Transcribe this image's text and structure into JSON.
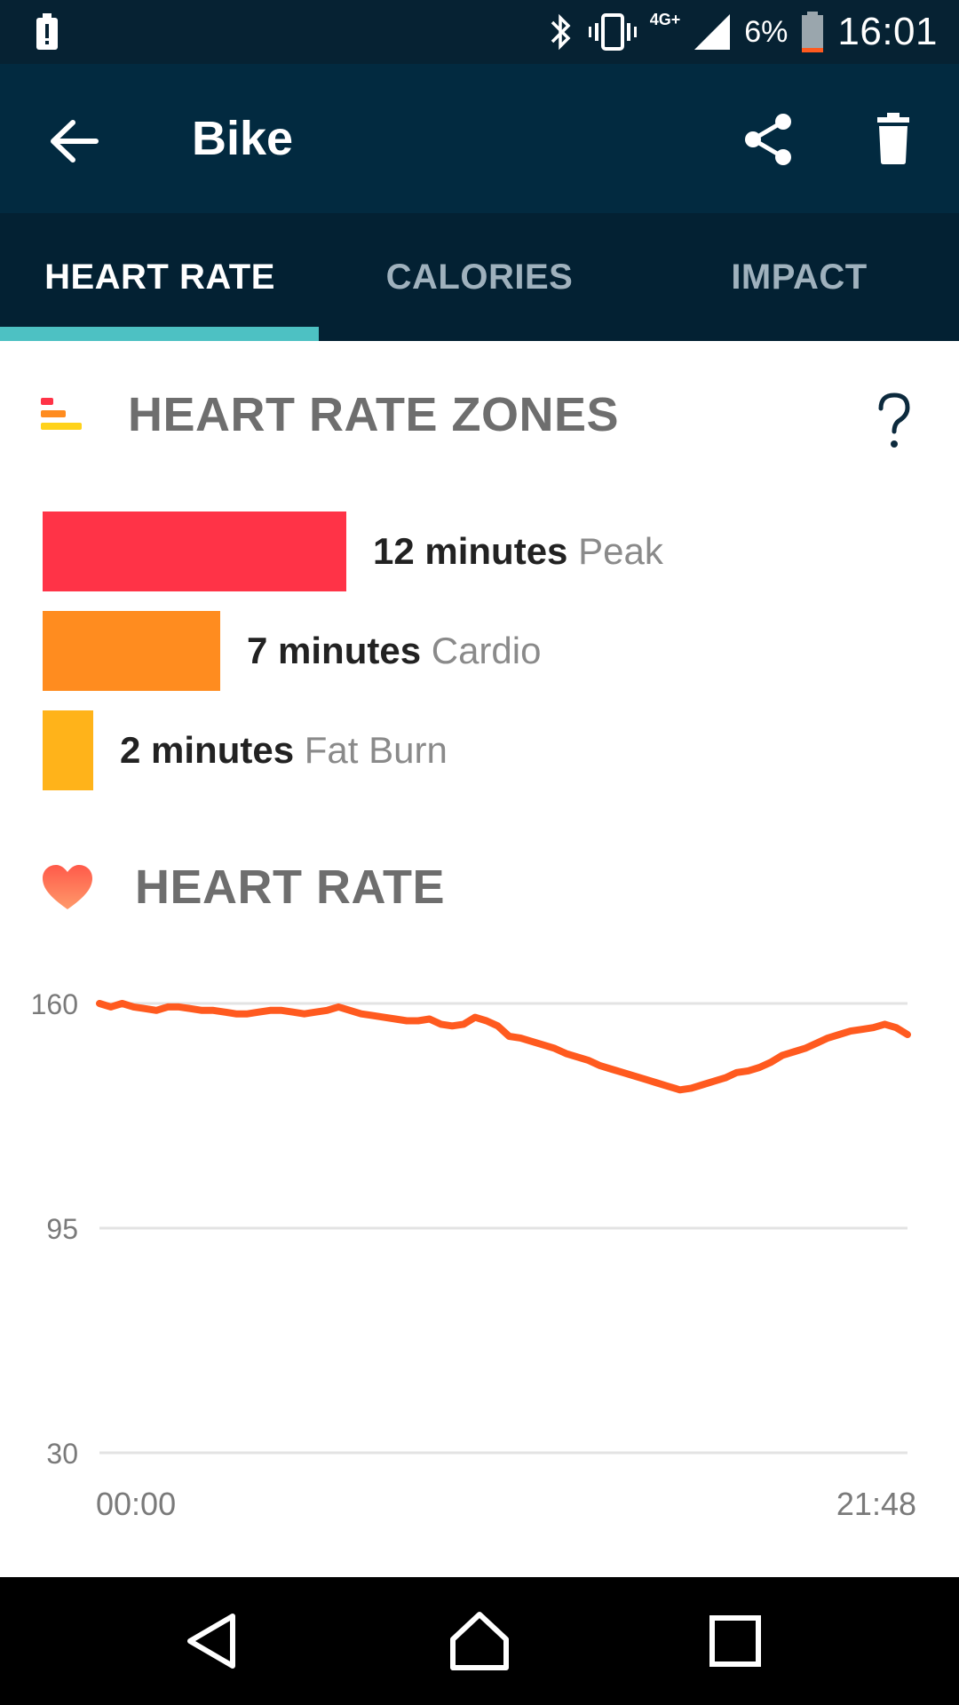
{
  "status_bar": {
    "network_label": "4G+",
    "battery_percent": "6%",
    "time": "16:01",
    "icons": [
      "alert-icon",
      "bluetooth-icon",
      "vibrate-icon",
      "signal-icon",
      "battery-icon"
    ]
  },
  "app_bar": {
    "title": "Bike",
    "icons": [
      "back-arrow-icon",
      "share-icon",
      "trash-icon"
    ]
  },
  "tabs": [
    {
      "label": "HEART RATE",
      "active": true
    },
    {
      "label": "CALORIES",
      "active": false
    },
    {
      "label": "IMPACT",
      "active": false
    }
  ],
  "zones": {
    "title": "HEART RATE ZONES",
    "items": [
      {
        "minutes": "12 minutes",
        "name": "Peak",
        "value": 12,
        "color": "#ff3347"
      },
      {
        "minutes": "7 minutes",
        "name": "Cardio",
        "value": 7,
        "color": "#ff8c1f"
      },
      {
        "minutes": "2 minutes",
        "name": "Fat Burn",
        "value": 2,
        "color": "#ffb31a"
      }
    ]
  },
  "heart_rate": {
    "title": "HEART RATE"
  },
  "chart_data": {
    "type": "line",
    "ylim": [
      30,
      160
    ],
    "y_ticks": [
      "160",
      "95",
      "30"
    ],
    "x_tick_labels": [
      "00:00",
      "21:48"
    ],
    "series_color": "#ff5a1f",
    "x": [
      0,
      1,
      2,
      3,
      4,
      5,
      6,
      7,
      8,
      9,
      10,
      11,
      12,
      13,
      14,
      15,
      16,
      17,
      18,
      19,
      20,
      21,
      22,
      23,
      24,
      25,
      26,
      27,
      28,
      29,
      30,
      31,
      32,
      33,
      34,
      35,
      36,
      37,
      38,
      39,
      40,
      41,
      42,
      43,
      44,
      45,
      46,
      47,
      48,
      49,
      50,
      51,
      52,
      53,
      54,
      55,
      56,
      57,
      58,
      59,
      60,
      61,
      62,
      63,
      64,
      65,
      66,
      67,
      68,
      69,
      70,
      71
    ],
    "y": [
      160,
      159,
      160,
      159,
      158.5,
      158,
      159,
      159,
      158.5,
      158,
      158,
      157.5,
      157,
      157,
      157.5,
      158,
      158,
      157.5,
      157,
      157.5,
      158,
      159,
      158,
      157,
      156.5,
      156,
      155.5,
      155,
      155,
      155.5,
      154,
      153.5,
      154,
      156,
      155,
      153.5,
      150.5,
      150,
      149,
      148,
      147,
      145.5,
      144.5,
      143.5,
      142,
      141,
      140,
      139,
      138,
      137,
      136,
      135,
      135.5,
      136.5,
      137.5,
      138.5,
      140,
      140.5,
      141.5,
      143,
      145,
      146,
      147,
      148.5,
      150,
      151,
      152,
      152.5,
      153,
      154,
      153,
      151
    ]
  },
  "nav_bar": {
    "icons": [
      "nav-back-icon",
      "nav-home-icon",
      "nav-recents-icon"
    ]
  }
}
